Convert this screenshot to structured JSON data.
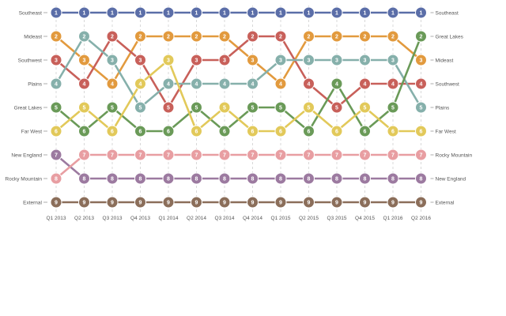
{
  "chart_data": {
    "type": "line",
    "subtype": "bump",
    "x": [
      "Q1 2013",
      "Q2 2013",
      "Q3 2013",
      "Q4 2013",
      "Q1 2014",
      "Q2 2014",
      "Q3 2014",
      "Q4 2014",
      "Q1 2015",
      "Q2 2015",
      "Q3 2015",
      "Q4 2015",
      "Q1 2016",
      "Q2 2016"
    ],
    "y_reversed": true,
    "ylim": [
      1,
      9
    ],
    "grid": "vertical dashed",
    "start_labels": [
      "Southeast",
      "Mideast",
      "Southwest",
      "Plains",
      "Great Lakes",
      "Far West",
      "New England",
      "Rocky Mountain",
      "External"
    ],
    "end_labels": [
      "Southeast",
      "Great Lakes",
      "Mideast",
      "Southwest",
      "Plains",
      "Far West",
      "Rocky Mountain",
      "New England",
      "External"
    ],
    "series": [
      {
        "name": "Southeast",
        "color": "#5b6ea8",
        "ranks": [
          1,
          1,
          1,
          1,
          1,
          1,
          1,
          1,
          1,
          1,
          1,
          1,
          1,
          1
        ]
      },
      {
        "name": "Mideast",
        "color": "#e29a3e",
        "ranks": [
          2,
          3,
          4,
          2,
          2,
          2,
          2,
          3,
          4,
          2,
          2,
          2,
          2,
          3
        ]
      },
      {
        "name": "Southwest",
        "color": "#c8605a",
        "ranks": [
          3,
          4,
          2,
          3,
          5,
          3,
          3,
          2,
          2,
          4,
          5,
          4,
          4,
          4
        ]
      },
      {
        "name": "Plains",
        "color": "#86b0ab",
        "ranks": [
          4,
          2,
          3,
          5,
          4,
          4,
          4,
          4,
          3,
          3,
          3,
          3,
          3,
          5
        ]
      },
      {
        "name": "Great Lakes",
        "color": "#6a9a58",
        "ranks": [
          5,
          6,
          5,
          6,
          6,
          5,
          6,
          5,
          5,
          6,
          4,
          6,
          5,
          2
        ]
      },
      {
        "name": "Far West",
        "color": "#e2c95a",
        "ranks": [
          6,
          5,
          6,
          4,
          3,
          6,
          5,
          6,
          6,
          5,
          6,
          5,
          6,
          6
        ]
      },
      {
        "name": "New England",
        "color": "#9c7aa0",
        "ranks": [
          7,
          8,
          8,
          8,
          8,
          8,
          8,
          8,
          8,
          8,
          8,
          8,
          8,
          8
        ]
      },
      {
        "name": "Rocky Mountain",
        "color": "#e89ea2",
        "ranks": [
          8,
          7,
          7,
          7,
          7,
          7,
          7,
          7,
          7,
          7,
          7,
          7,
          7,
          7
        ]
      },
      {
        "name": "External",
        "color": "#8b6e5a",
        "ranks": [
          9,
          9,
          9,
          9,
          9,
          9,
          9,
          9,
          9,
          9,
          9,
          9,
          9,
          9
        ]
      }
    ]
  }
}
